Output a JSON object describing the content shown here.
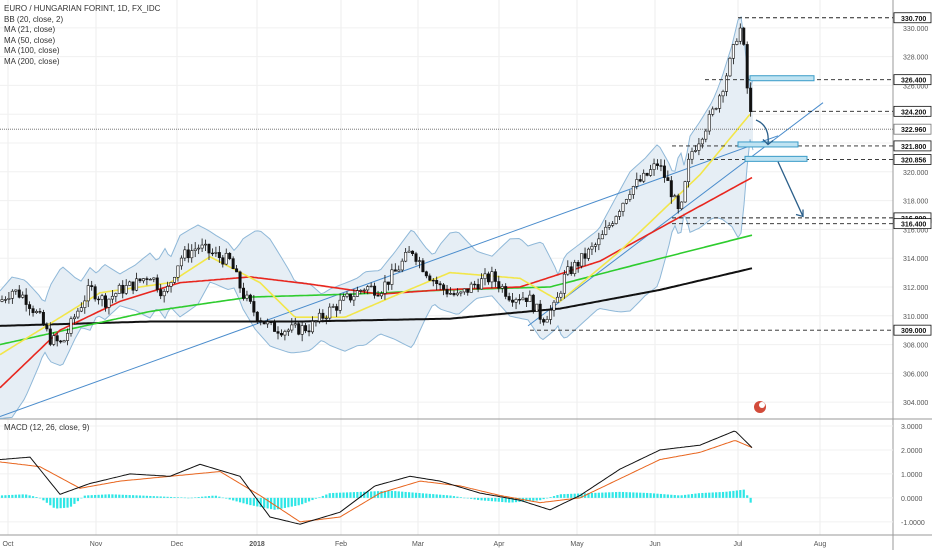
{
  "header": {
    "title": "EURO / HUNGARIAN FORINT, 1D, FX_IDC",
    "indicators": [
      "BB (20, close, 2)",
      "MA (21, close)",
      "MA (50, close)",
      "MA (100, close)",
      "MA (200, close)"
    ],
    "macd_label": "MACD (12, 26, close, 9)"
  },
  "colors": {
    "bb_band": "#8fb8d8",
    "bb_fill": "#e6eef5",
    "ma21": "#f2e64a",
    "ma50": "#e8261e",
    "ma100": "#2ecc2e",
    "ma200": "#111111",
    "trendline": "#4a8ccc",
    "macd_line": "#111111",
    "signal_line": "#e8651e",
    "histogram": "#2ee6e6"
  },
  "chart_data": [
    {
      "type": "candlestick",
      "title": "EURO / HUNGARIAN FORINT, 1D, FX_IDC",
      "x_labels": [
        "Oct",
        "Nov",
        "Dec",
        "2018",
        "Feb",
        "Mar",
        "Apr",
        "May",
        "Jun",
        "Jul",
        "Aug"
      ],
      "y_ticks": [
        "304.000",
        "306.000",
        "308.000",
        "310.000",
        "312.000",
        "314.000",
        "316.000",
        "318.000",
        "320.000",
        "322.000",
        "324.000",
        "326.000",
        "328.000",
        "330.000"
      ],
      "ylim": [
        302.9,
        331.1
      ],
      "price_path": [
        [
          0,
          311.0
        ],
        [
          12,
          311.8
        ],
        [
          25,
          311.3
        ],
        [
          40,
          309.8
        ],
        [
          50,
          308.4
        ],
        [
          62,
          308.0
        ],
        [
          75,
          310.0
        ],
        [
          90,
          311.9
        ],
        [
          105,
          311.0
        ],
        [
          120,
          311.8
        ],
        [
          135,
          312.2
        ],
        [
          150,
          312.9
        ],
        [
          165,
          311.4
        ],
        [
          180,
          314.0
        ],
        [
          198,
          314.8
        ],
        [
          215,
          314.2
        ],
        [
          230,
          313.8
        ],
        [
          243,
          311.5
        ],
        [
          255,
          310.2
        ],
        [
          270,
          309.2
        ],
        [
          290,
          309.0
        ],
        [
          310,
          309.2
        ],
        [
          330,
          310.4
        ],
        [
          350,
          311.3
        ],
        [
          365,
          312.0
        ],
        [
          380,
          311.8
        ],
        [
          395,
          313.0
        ],
        [
          412,
          314.6
        ],
        [
          425,
          313.2
        ],
        [
          440,
          312.0
        ],
        [
          458,
          311.3
        ],
        [
          475,
          312.2
        ],
        [
          492,
          312.7
        ],
        [
          510,
          311.4
        ],
        [
          528,
          311.3
        ],
        [
          542,
          309.8
        ],
        [
          555,
          310.6
        ],
        [
          565,
          312.8
        ],
        [
          580,
          313.8
        ],
        [
          600,
          315.2
        ],
        [
          615,
          317.0
        ],
        [
          630,
          318.8
        ],
        [
          645,
          319.6
        ],
        [
          658,
          320.6
        ],
        [
          670,
          318.9
        ],
        [
          680,
          316.8
        ],
        [
          690,
          321.2
        ],
        [
          700,
          322.4
        ],
        [
          712,
          324.0
        ],
        [
          722,
          325.8
        ],
        [
          732,
          328.0
        ],
        [
          738,
          329.8
        ],
        [
          742,
          330.0
        ],
        [
          746,
          326.5
        ],
        [
          750,
          324.2
        ],
        [
          753,
          323.0
        ]
      ],
      "ma21": [
        [
          0,
          307.3
        ],
        [
          100,
          311.6
        ],
        [
          170,
          312.3
        ],
        [
          210,
          314.1
        ],
        [
          260,
          312.3
        ],
        [
          295,
          309.9
        ],
        [
          345,
          309.9
        ],
        [
          395,
          311.4
        ],
        [
          450,
          313.0
        ],
        [
          520,
          312.6
        ],
        [
          560,
          311.0
        ],
        [
          620,
          314.5
        ],
        [
          700,
          319.8
        ],
        [
          750,
          324.0
        ]
      ],
      "ma50": [
        [
          0,
          305.0
        ],
        [
          60,
          309.0
        ],
        [
          120,
          311.0
        ],
        [
          180,
          312.3
        ],
        [
          250,
          312.7
        ],
        [
          310,
          312.2
        ],
        [
          380,
          311.5
        ],
        [
          440,
          311.8
        ],
        [
          520,
          312.0
        ],
        [
          600,
          313.8
        ],
        [
          660,
          316.1
        ],
        [
          752,
          319.6
        ]
      ],
      "ma100": [
        [
          0,
          308.0
        ],
        [
          150,
          310.3
        ],
        [
          250,
          311.3
        ],
        [
          350,
          311.5
        ],
        [
          450,
          311.8
        ],
        [
          550,
          312.0
        ],
        [
          650,
          313.8
        ],
        [
          752,
          315.6
        ]
      ],
      "ma200": [
        [
          0,
          309.3
        ],
        [
          150,
          309.6
        ],
        [
          300,
          309.6
        ],
        [
          450,
          309.8
        ],
        [
          560,
          310.5
        ],
        [
          660,
          311.8
        ],
        [
          752,
          313.3
        ]
      ],
      "levels": [
        "330.700",
        "326.400",
        "324.200",
        "322.960",
        "321.800",
        "320.856",
        "316.800",
        "316.400",
        "309.000"
      ],
      "current_price": "322.960"
    },
    {
      "type": "macd",
      "title": "MACD (12, 26, close, 9)",
      "y_ticks": [
        "-1.0000",
        "0.0000",
        "1.0000",
        "2.0000",
        "3.0000"
      ],
      "ylim": [
        -1.55,
        3.25
      ],
      "macd": [
        [
          0,
          1.6
        ],
        [
          30,
          1.7
        ],
        [
          60,
          0.15
        ],
        [
          90,
          0.6
        ],
        [
          130,
          1.0
        ],
        [
          170,
          0.9
        ],
        [
          200,
          1.4
        ],
        [
          240,
          0.9
        ],
        [
          270,
          -0.8
        ],
        [
          300,
          -1.1
        ],
        [
          340,
          -0.6
        ],
        [
          375,
          0.5
        ],
        [
          410,
          0.9
        ],
        [
          440,
          0.7
        ],
        [
          480,
          0.2
        ],
        [
          520,
          -0.1
        ],
        [
          550,
          -0.5
        ],
        [
          580,
          0.1
        ],
        [
          620,
          1.2
        ],
        [
          660,
          2.0
        ],
        [
          700,
          2.2
        ],
        [
          735,
          2.8
        ],
        [
          752,
          2.1
        ]
      ],
      "signal": [
        [
          0,
          1.5
        ],
        [
          40,
          1.3
        ],
        [
          80,
          0.4
        ],
        [
          120,
          0.7
        ],
        [
          170,
          0.9
        ],
        [
          220,
          1.1
        ],
        [
          260,
          0.1
        ],
        [
          300,
          -1.0
        ],
        [
          340,
          -0.8
        ],
        [
          380,
          0.2
        ],
        [
          420,
          0.7
        ],
        [
          460,
          0.5
        ],
        [
          500,
          0.1
        ],
        [
          540,
          -0.2
        ],
        [
          580,
          0.0
        ],
        [
          620,
          0.8
        ],
        [
          660,
          1.6
        ],
        [
          700,
          1.9
        ],
        [
          735,
          2.4
        ],
        [
          752,
          2.1
        ]
      ],
      "histogram": [
        [
          0,
          0.1
        ],
        [
          25,
          0.15
        ],
        [
          40,
          0.0
        ],
        [
          55,
          -0.45
        ],
        [
          70,
          -0.4
        ],
        [
          85,
          0.1
        ],
        [
          110,
          0.15
        ],
        [
          140,
          0.1
        ],
        [
          190,
          0.0
        ],
        [
          215,
          0.1
        ],
        [
          250,
          -0.3
        ],
        [
          275,
          -0.5
        ],
        [
          300,
          -0.3
        ],
        [
          330,
          0.2
        ],
        [
          360,
          0.25
        ],
        [
          390,
          0.3
        ],
        [
          420,
          0.2
        ],
        [
          450,
          0.1
        ],
        [
          480,
          -0.1
        ],
        [
          510,
          -0.2
        ],
        [
          540,
          -0.1
        ],
        [
          560,
          0.15
        ],
        [
          590,
          0.2
        ],
        [
          620,
          0.25
        ],
        [
          650,
          0.2
        ],
        [
          680,
          0.1
        ],
        [
          700,
          0.2
        ],
        [
          725,
          0.25
        ],
        [
          745,
          0.35
        ],
        [
          750,
          -0.2
        ]
      ]
    }
  ]
}
